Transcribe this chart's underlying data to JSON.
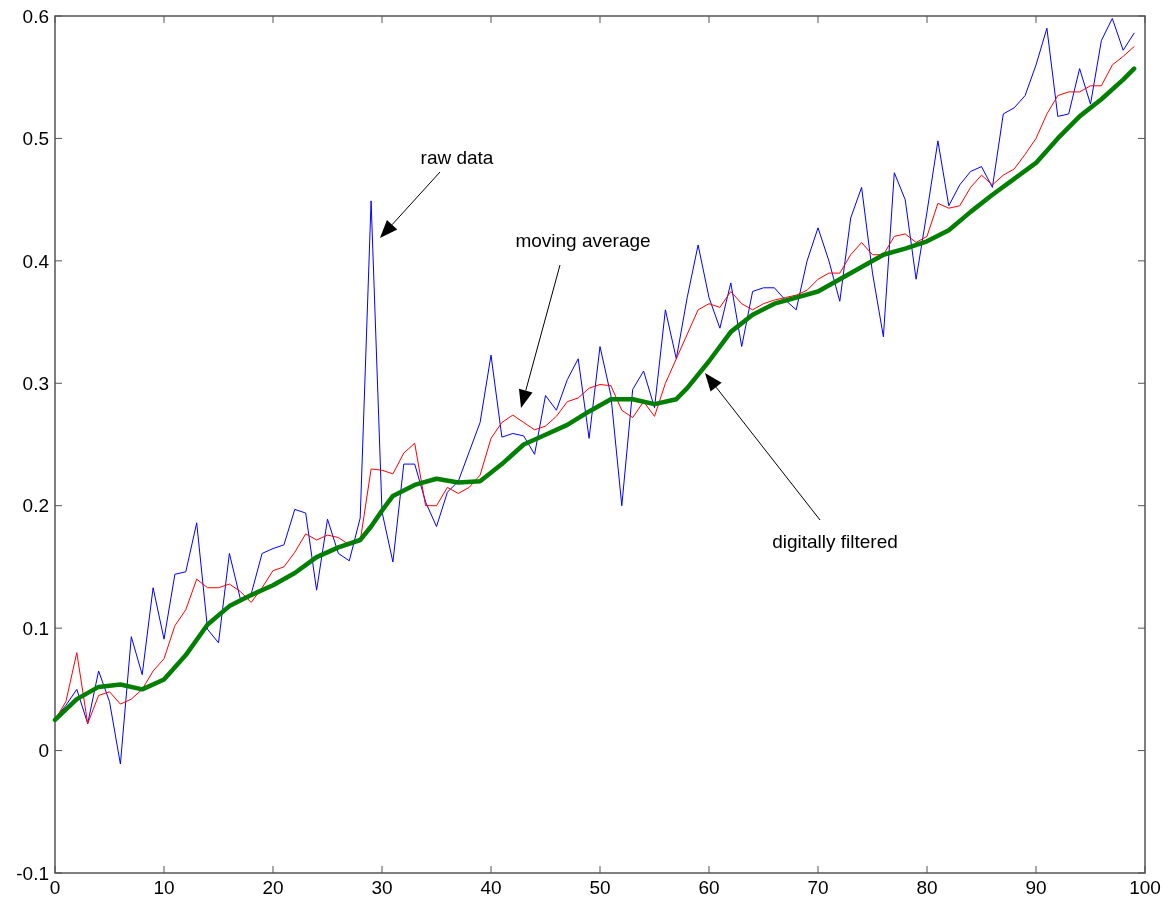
{
  "chart_data": {
    "type": "line",
    "xlim": [
      0,
      100
    ],
    "xticks": [
      0,
      10,
      20,
      30,
      40,
      50,
      60,
      70,
      80,
      90,
      100
    ],
    "ylim": [
      -0.1,
      0.6
    ],
    "yticks": [
      -0.1,
      0,
      0.1,
      0.2,
      0.3,
      0.4,
      0.5,
      0.6
    ],
    "grid": false,
    "marker": "none",
    "line_style": "solid",
    "series": [
      {
        "color": "#0000ff",
        "x": [
          0,
          1,
          2,
          3,
          4,
          5,
          6,
          7,
          8,
          9,
          10,
          11,
          12,
          13,
          14,
          15,
          16,
          17,
          18,
          19,
          20,
          21,
          22,
          23,
          24,
          25,
          26,
          27,
          28,
          29,
          30,
          31,
          32,
          33,
          34,
          35,
          36,
          37,
          38,
          39,
          40,
          41,
          42,
          43,
          44,
          45,
          46,
          47,
          48,
          49,
          50,
          51,
          52,
          53,
          54,
          55,
          56,
          57,
          58,
          59,
          60,
          61,
          62,
          63,
          64,
          65,
          66,
          67,
          68,
          69,
          70,
          71,
          72,
          73,
          74,
          75,
          76,
          77,
          78,
          79,
          80,
          81,
          82,
          83,
          84,
          85,
          86,
          87,
          88,
          89,
          90,
          91,
          92,
          93,
          94,
          95,
          96,
          97,
          98,
          99
        ],
        "values": [
          0.026,
          0.037,
          0.05,
          0.022,
          0.065,
          0.04,
          -0.011,
          0.093,
          0.062,
          0.133,
          0.091,
          0.144,
          0.146,
          0.186,
          0.099,
          0.088,
          0.161,
          0.124,
          0.128,
          0.161,
          0.165,
          0.168,
          0.197,
          0.194,
          0.131,
          0.189,
          0.161,
          0.155,
          0.19,
          0.449,
          0.195,
          0.154,
          0.234,
          0.234,
          0.203,
          0.183,
          0.211,
          0.22,
          0.244,
          0.268,
          0.323,
          0.256,
          0.259,
          0.257,
          0.242,
          0.29,
          0.278,
          0.303,
          0.32,
          0.255,
          0.33,
          0.29,
          0.2,
          0.295,
          0.31,
          0.28,
          0.36,
          0.32,
          0.37,
          0.413,
          0.37,
          0.345,
          0.382,
          0.33,
          0.375,
          0.378,
          0.378,
          0.368,
          0.36,
          0.4,
          0.427,
          0.4,
          0.367,
          0.435,
          0.46,
          0.39,
          0.338,
          0.472,
          0.45,
          0.385,
          0.44,
          0.498,
          0.445,
          0.462,
          0.473,
          0.477,
          0.46,
          0.52,
          0.525,
          0.535,
          0.56,
          0.59,
          0.518,
          0.52,
          0.557,
          0.528,
          0.58,
          0.598,
          0.572,
          0.586
        ]
      },
      {
        "color": "#ff0000",
        "x": [
          0,
          1,
          2,
          3,
          4,
          5,
          6,
          7,
          8,
          9,
          10,
          11,
          12,
          13,
          14,
          15,
          16,
          17,
          18,
          19,
          20,
          21,
          22,
          23,
          24,
          25,
          26,
          27,
          28,
          29,
          30,
          31,
          32,
          33,
          34,
          35,
          36,
          37,
          38,
          39,
          40,
          41,
          42,
          43,
          44,
          45,
          46,
          47,
          48,
          49,
          50,
          51,
          52,
          53,
          54,
          55,
          56,
          57,
          58,
          59,
          60,
          61,
          62,
          63,
          64,
          65,
          66,
          67,
          68,
          69,
          70,
          71,
          72,
          73,
          74,
          75,
          76,
          77,
          78,
          79,
          80,
          81,
          82,
          83,
          84,
          85,
          86,
          87,
          88,
          89,
          90,
          91,
          92,
          93,
          94,
          95,
          96,
          97,
          98,
          99
        ],
        "values": [
          0.025,
          0.04,
          0.08,
          0.022,
          0.045,
          0.048,
          0.038,
          0.042,
          0.05,
          0.065,
          0.075,
          0.102,
          0.115,
          0.14,
          0.133,
          0.133,
          0.136,
          0.13,
          0.121,
          0.133,
          0.147,
          0.15,
          0.162,
          0.177,
          0.172,
          0.176,
          0.174,
          0.168,
          0.171,
          0.23,
          0.229,
          0.226,
          0.243,
          0.251,
          0.2,
          0.2,
          0.215,
          0.21,
          0.215,
          0.225,
          0.255,
          0.268,
          0.274,
          0.268,
          0.262,
          0.265,
          0.273,
          0.285,
          0.288,
          0.296,
          0.299,
          0.298,
          0.278,
          0.272,
          0.285,
          0.273,
          0.3,
          0.32,
          0.34,
          0.36,
          0.365,
          0.362,
          0.375,
          0.365,
          0.36,
          0.365,
          0.368,
          0.37,
          0.372,
          0.376,
          0.385,
          0.39,
          0.39,
          0.405,
          0.415,
          0.405,
          0.405,
          0.42,
          0.422,
          0.415,
          0.42,
          0.447,
          0.443,
          0.445,
          0.46,
          0.47,
          0.462,
          0.47,
          0.475,
          0.487,
          0.5,
          0.52,
          0.535,
          0.538,
          0.538,
          0.543,
          0.543,
          0.56,
          0.567,
          0.575
        ]
      },
      {
        "color": "#007f00",
        "x": [
          0,
          2,
          4,
          6,
          8,
          10,
          12,
          14,
          16,
          18,
          20,
          22,
          24,
          26,
          28,
          29,
          30,
          31,
          33,
          35,
          37,
          39,
          41,
          43,
          45,
          47,
          49,
          51,
          53,
          55,
          57,
          58,
          60,
          62,
          64,
          66,
          68,
          70,
          72,
          74,
          76,
          78,
          80,
          82,
          84,
          86,
          88,
          90,
          92,
          94,
          96,
          98,
          99
        ],
        "values": [
          0.025,
          0.042,
          0.052,
          0.054,
          0.05,
          0.058,
          0.078,
          0.103,
          0.118,
          0.127,
          0.135,
          0.145,
          0.158,
          0.166,
          0.172,
          0.183,
          0.196,
          0.208,
          0.217,
          0.222,
          0.219,
          0.22,
          0.234,
          0.25,
          0.258,
          0.266,
          0.277,
          0.287,
          0.287,
          0.283,
          0.287,
          0.296,
          0.318,
          0.342,
          0.356,
          0.365,
          0.37,
          0.375,
          0.385,
          0.395,
          0.405,
          0.41,
          0.416,
          0.425,
          0.44,
          0.454,
          0.467,
          0.48,
          0.5,
          0.518,
          0.532,
          0.548,
          0.557
        ]
      }
    ],
    "annotations": [
      "raw data",
      "moving average",
      "digitally filtered"
    ]
  }
}
